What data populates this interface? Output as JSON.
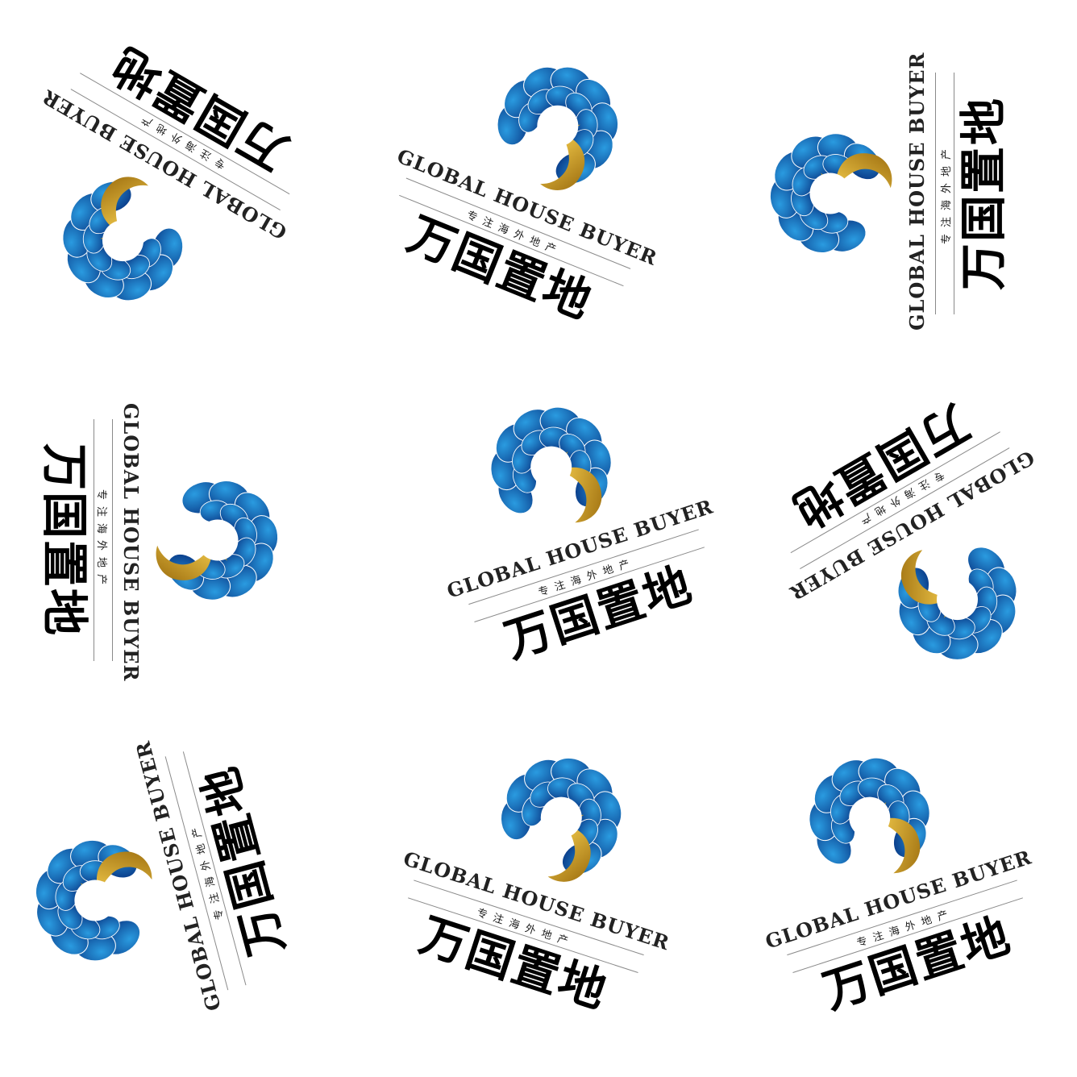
{
  "logo": {
    "english_name": "GLOBAL HOUSE BUYER",
    "tagline": "专注海外地产",
    "chinese_name": "万国置地",
    "colors": {
      "petal_light": "#2a9be0",
      "petal_dark": "#0b3f8c",
      "gold_light": "#f0c84a",
      "gold_dark": "#9c6d0e",
      "text": "#000000",
      "rule": "#8a8a8a",
      "background": "#ffffff"
    }
  },
  "tiles": [
    {
      "id": "tile-1"
    },
    {
      "id": "tile-2"
    },
    {
      "id": "tile-3"
    },
    {
      "id": "tile-4"
    },
    {
      "id": "tile-5"
    },
    {
      "id": "tile-6"
    },
    {
      "id": "tile-7"
    },
    {
      "id": "tile-8"
    },
    {
      "id": "tile-9"
    }
  ]
}
